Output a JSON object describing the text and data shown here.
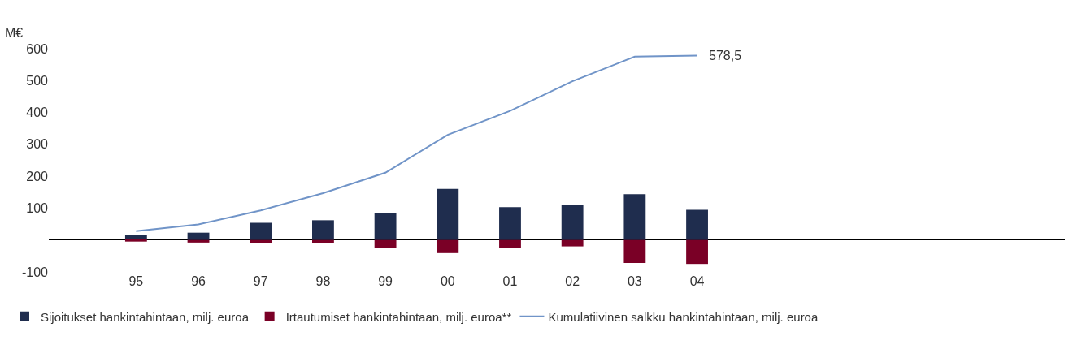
{
  "chart_data": {
    "type": "bar",
    "stacked": true,
    "ylabel": "M€",
    "categories": [
      "95",
      "96",
      "97",
      "98",
      "99",
      "00",
      "01",
      "02",
      "03",
      "04"
    ],
    "series": [
      {
        "name": "Sijoitukset hankintahintaan, milj. euroa",
        "color": "#1f2d4e",
        "values": [
          15,
          23,
          54,
          62,
          85,
          160,
          103,
          111,
          144,
          95
        ]
      },
      {
        "name": "Irtautumiset hankintahintaan, milj. euroa**",
        "color": "#7a0026",
        "values": [
          -5,
          -8,
          -10,
          -10,
          -25,
          -41,
          -25,
          -20,
          -72,
          -75
        ]
      },
      {
        "name": "Kumulatiivinen salkku hankintahintaan, milj. euroa",
        "type": "line",
        "color": "#7094c8",
        "values": [
          28,
          49,
          93,
          147,
          211,
          330,
          405,
          498,
          575,
          578.5
        ]
      }
    ],
    "annotations": [
      {
        "text": "578,5",
        "x": "04",
        "y": 578.5
      }
    ],
    "ylim": [
      -100,
      600
    ],
    "yticks": [
      -100,
      100,
      200,
      300,
      400,
      500,
      600
    ],
    "legend": "bottom"
  }
}
